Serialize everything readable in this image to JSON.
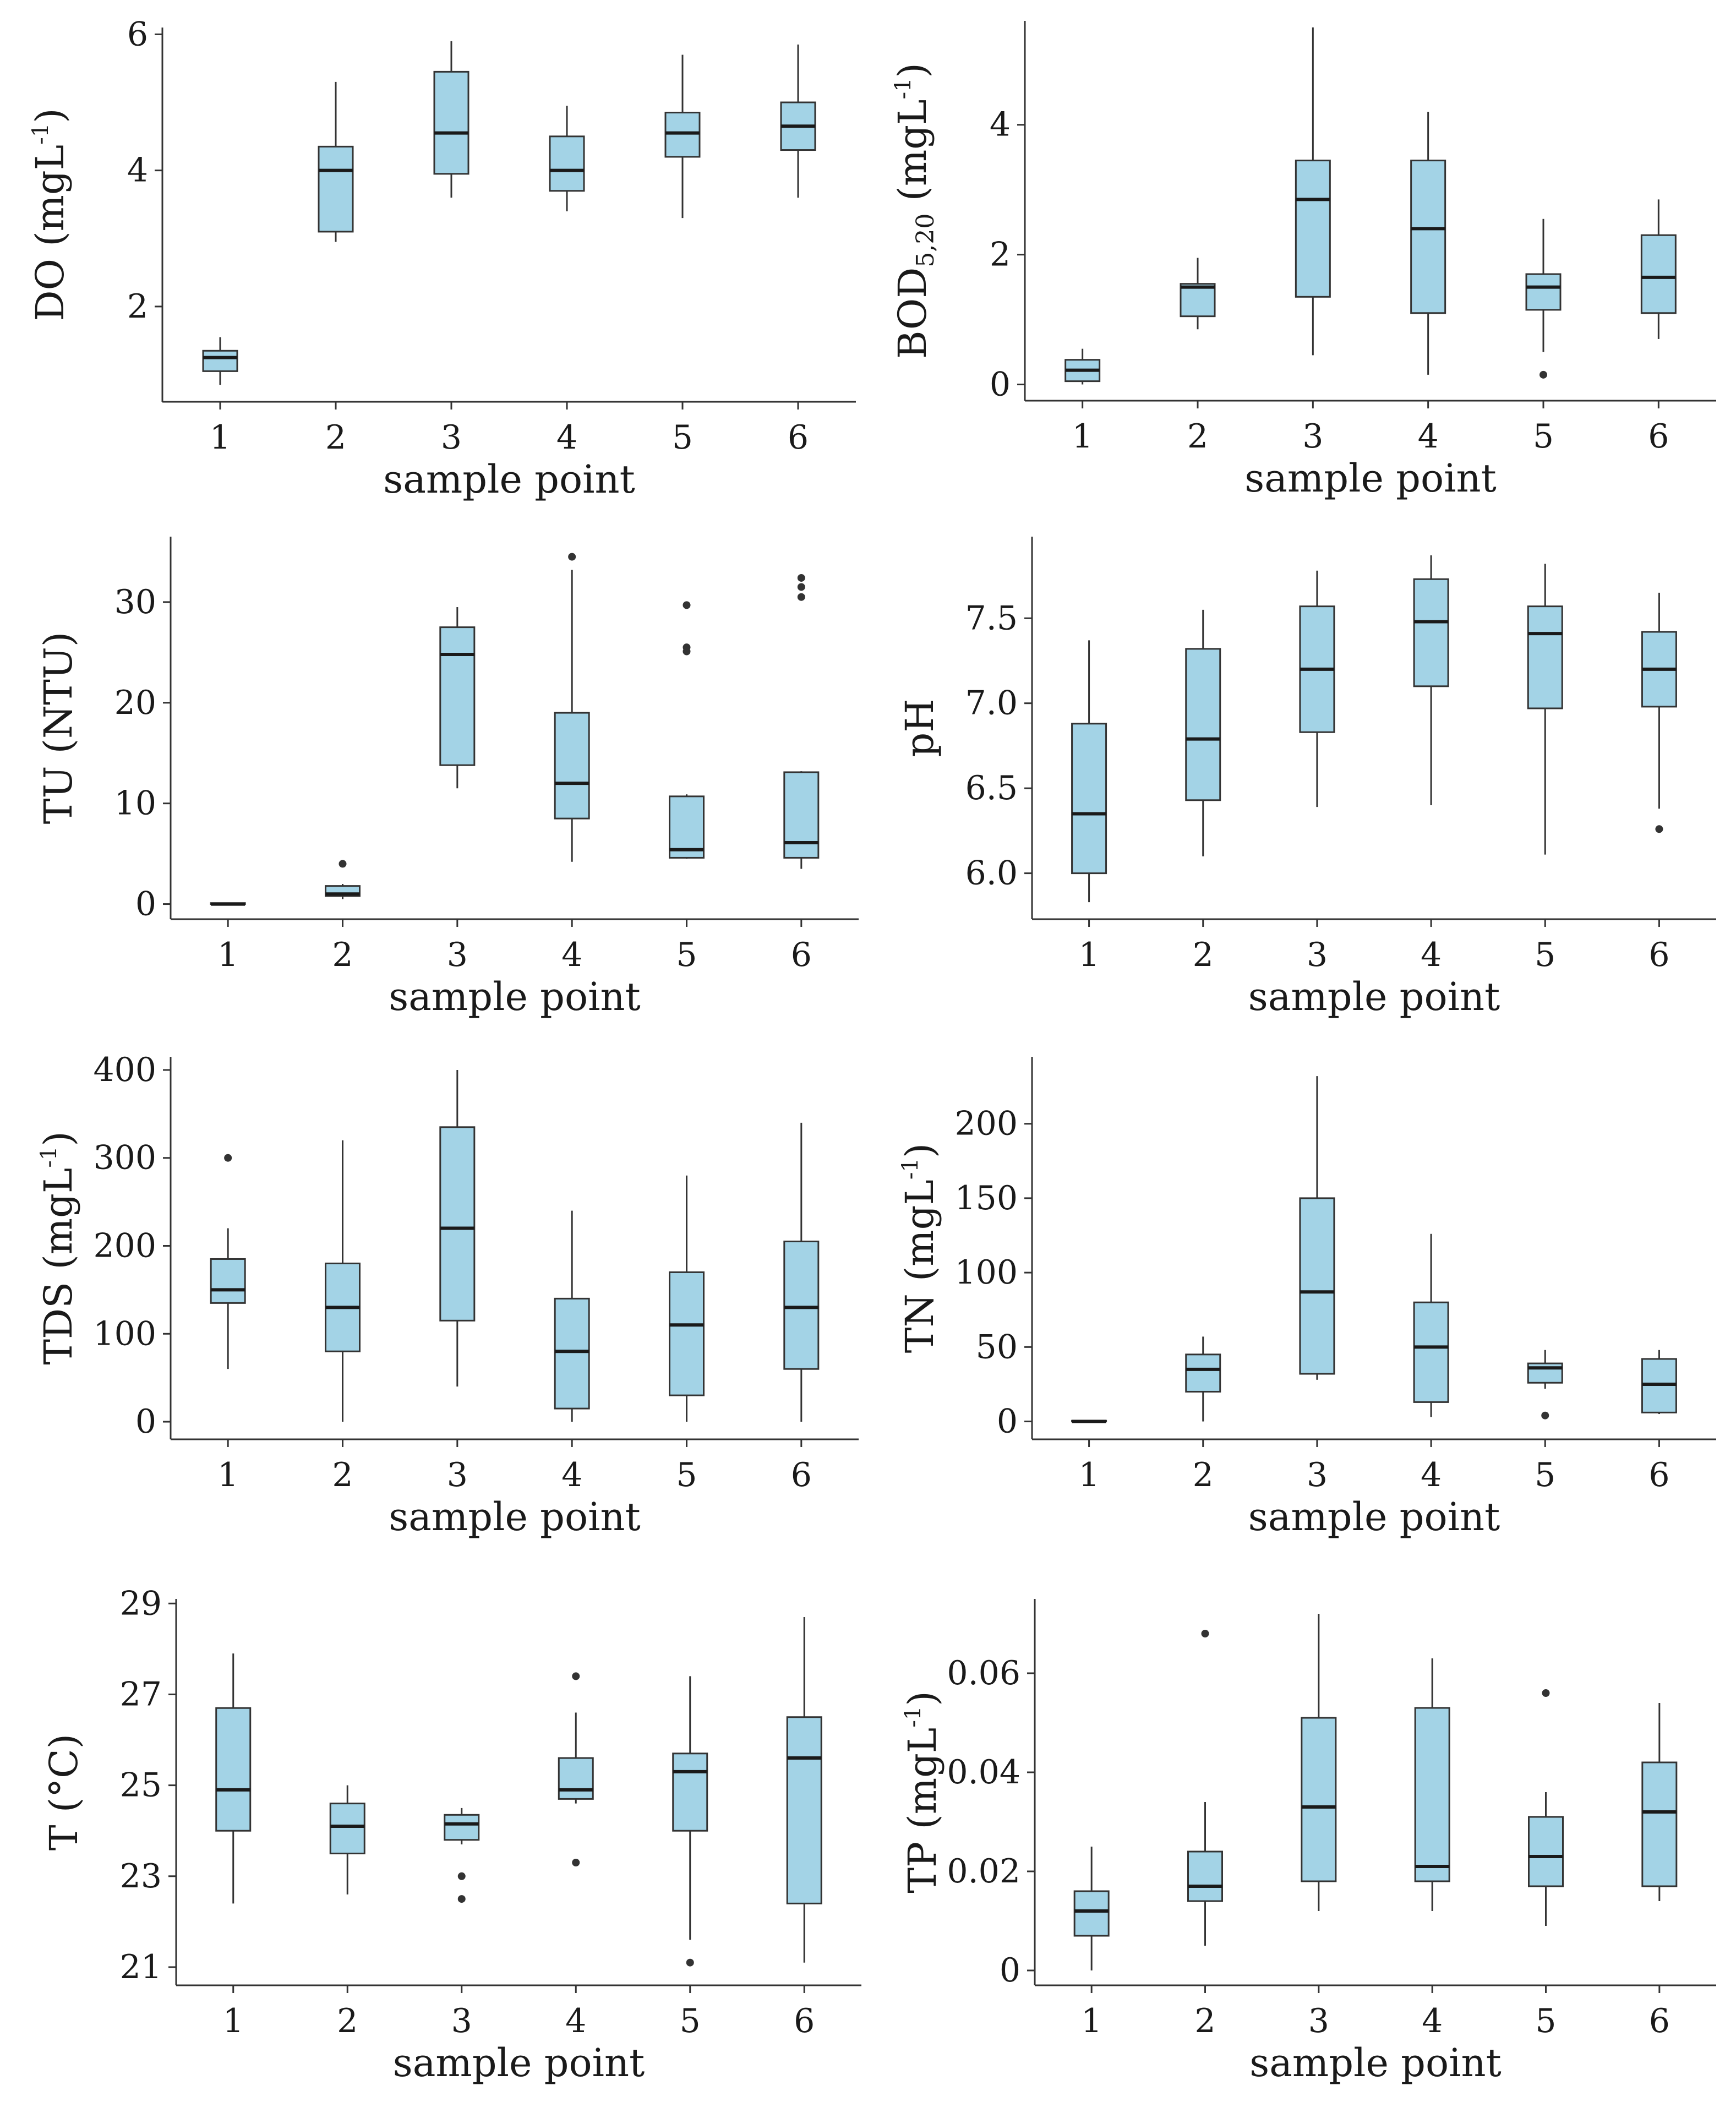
{
  "colors": {
    "box_fill": "#a3d3e6",
    "box_stroke": "#333333"
  },
  "chart_data": [
    {
      "type": "boxplot",
      "id": "do",
      "ylabel_main": "DO (mgL",
      "ylabel_sup": "-1",
      "ylabel_tail": ")",
      "xlabel": "sample point",
      "categories": [
        "1",
        "2",
        "3",
        "4",
        "5",
        "6"
      ],
      "ylim": [
        0.6,
        6.1
      ],
      "yticks": [
        {
          "v": 2,
          "label": "2"
        },
        {
          "v": 4,
          "label": "4"
        },
        {
          "v": 6,
          "label": "6"
        }
      ],
      "boxes": [
        {
          "min": 0.85,
          "q1": 1.05,
          "median": 1.25,
          "q3": 1.35,
          "max": 1.55,
          "outliers": []
        },
        {
          "min": 2.95,
          "q1": 3.1,
          "median": 4.0,
          "q3": 4.35,
          "max": 5.3,
          "outliers": []
        },
        {
          "min": 3.6,
          "q1": 3.95,
          "median": 4.55,
          "q3": 5.45,
          "max": 5.9,
          "outliers": []
        },
        {
          "min": 3.4,
          "q1": 3.7,
          "median": 4.0,
          "q3": 4.5,
          "max": 4.95,
          "outliers": []
        },
        {
          "min": 3.3,
          "q1": 4.2,
          "median": 4.55,
          "q3": 4.85,
          "max": 5.7,
          "outliers": []
        },
        {
          "min": 3.6,
          "q1": 4.3,
          "median": 4.65,
          "q3": 5.0,
          "max": 5.85,
          "outliers": []
        }
      ]
    },
    {
      "type": "boxplot",
      "id": "bod",
      "ylabel_main": "BOD",
      "ylabel_sub": "5,20",
      "ylabel_tail": " (mgL",
      "ylabel_sup": "-1",
      "ylabel_end": ")",
      "xlabel": "sample point",
      "categories": [
        "1",
        "2",
        "3",
        "4",
        "5",
        "6"
      ],
      "ylim": [
        -0.25,
        5.6
      ],
      "yticks": [
        {
          "v": 0,
          "label": "0"
        },
        {
          "v": 2,
          "label": "2"
        },
        {
          "v": 4,
          "label": "4"
        }
      ],
      "boxes": [
        {
          "min": 0.0,
          "q1": 0.05,
          "median": 0.22,
          "q3": 0.38,
          "max": 0.55,
          "outliers": []
        },
        {
          "min": 0.85,
          "q1": 1.05,
          "median": 1.5,
          "q3": 1.55,
          "max": 1.95,
          "outliers": []
        },
        {
          "min": 0.45,
          "q1": 1.35,
          "median": 2.85,
          "q3": 3.45,
          "max": 5.5,
          "outliers": []
        },
        {
          "min": 0.15,
          "q1": 1.1,
          "median": 2.4,
          "q3": 3.45,
          "max": 4.2,
          "outliers": []
        },
        {
          "min": 0.5,
          "q1": 1.15,
          "median": 1.5,
          "q3": 1.7,
          "max": 2.55,
          "outliers": [
            0.15
          ]
        },
        {
          "min": 0.7,
          "q1": 1.1,
          "median": 1.65,
          "q3": 2.3,
          "max": 2.85,
          "outliers": []
        }
      ]
    },
    {
      "type": "boxplot",
      "id": "tu",
      "ylabel_main": "TU (NTU)",
      "xlabel": "sample point",
      "categories": [
        "1",
        "2",
        "3",
        "4",
        "5",
        "6"
      ],
      "ylim": [
        -1.5,
        36.5
      ],
      "yticks": [
        {
          "v": 0,
          "label": "0"
        },
        {
          "v": 10,
          "label": "10"
        },
        {
          "v": 20,
          "label": "20"
        },
        {
          "v": 30,
          "label": "30"
        }
      ],
      "boxes": [
        {
          "min": 0.0,
          "q1": 0.0,
          "median": 0.0,
          "q3": 0.1,
          "max": 0.1,
          "outliers": []
        },
        {
          "min": 0.5,
          "q1": 0.8,
          "median": 1.0,
          "q3": 1.8,
          "max": 2.0,
          "outliers": [
            4.0
          ]
        },
        {
          "min": 11.5,
          "q1": 13.8,
          "median": 24.8,
          "q3": 27.5,
          "max": 29.5,
          "outliers": []
        },
        {
          "min": 4.2,
          "q1": 8.5,
          "median": 12.0,
          "q3": 19.0,
          "max": 33.2,
          "outliers": [
            34.5
          ]
        },
        {
          "min": 4.5,
          "q1": 4.6,
          "median": 5.4,
          "q3": 10.7,
          "max": 10.9,
          "outliers": [
            25.1,
            25.5,
            29.7
          ]
        },
        {
          "min": 3.5,
          "q1": 4.6,
          "median": 6.1,
          "q3": 13.1,
          "max": 13.2,
          "outliers": [
            30.5,
            31.5,
            32.4
          ]
        }
      ]
    },
    {
      "type": "boxplot",
      "id": "ph",
      "ylabel_main": "pH",
      "xlabel": "sample point",
      "categories": [
        "1",
        "2",
        "3",
        "4",
        "5",
        "6"
      ],
      "ylim": [
        5.73,
        7.98
      ],
      "yticks": [
        {
          "v": 6.0,
          "label": "6.0"
        },
        {
          "v": 6.5,
          "label": "6.5"
        },
        {
          "v": 7.0,
          "label": "7.0"
        },
        {
          "v": 7.5,
          "label": "7.5"
        }
      ],
      "boxes": [
        {
          "min": 5.83,
          "q1": 6.0,
          "median": 6.35,
          "q3": 6.88,
          "max": 7.37,
          "outliers": []
        },
        {
          "min": 6.1,
          "q1": 6.43,
          "median": 6.79,
          "q3": 7.32,
          "max": 7.55,
          "outliers": []
        },
        {
          "min": 6.39,
          "q1": 6.83,
          "median": 7.2,
          "q3": 7.57,
          "max": 7.78,
          "outliers": []
        },
        {
          "min": 6.4,
          "q1": 7.1,
          "median": 7.48,
          "q3": 7.73,
          "max": 7.87,
          "outliers": []
        },
        {
          "min": 6.11,
          "q1": 6.97,
          "median": 7.41,
          "q3": 7.57,
          "max": 7.82,
          "outliers": []
        },
        {
          "min": 6.38,
          "q1": 6.98,
          "median": 7.2,
          "q3": 7.42,
          "max": 7.65,
          "outliers": [
            6.26
          ]
        }
      ]
    },
    {
      "type": "boxplot",
      "id": "tds",
      "ylabel_main": "TDS (mgL",
      "ylabel_sup": "-1",
      "ylabel_tail": ")",
      "xlabel": "sample point",
      "categories": [
        "1",
        "2",
        "3",
        "4",
        "5",
        "6"
      ],
      "ylim": [
        -20,
        415
      ],
      "yticks": [
        {
          "v": 0,
          "label": "0"
        },
        {
          "v": 100,
          "label": "100"
        },
        {
          "v": 200,
          "label": "200"
        },
        {
          "v": 300,
          "label": "300"
        },
        {
          "v": 400,
          "label": "400"
        }
      ],
      "boxes": [
        {
          "min": 60,
          "q1": 135,
          "median": 150,
          "q3": 185,
          "max": 220,
          "outliers": [
            300
          ]
        },
        {
          "min": 0,
          "q1": 80,
          "median": 130,
          "q3": 180,
          "max": 320,
          "outliers": []
        },
        {
          "min": 40,
          "q1": 115,
          "median": 220,
          "q3": 335,
          "max": 400,
          "outliers": []
        },
        {
          "min": 0,
          "q1": 15,
          "median": 80,
          "q3": 140,
          "max": 240,
          "outliers": []
        },
        {
          "min": 0,
          "q1": 30,
          "median": 110,
          "q3": 170,
          "max": 280,
          "outliers": []
        },
        {
          "min": 0,
          "q1": 60,
          "median": 130,
          "q3": 205,
          "max": 340,
          "outliers": []
        }
      ]
    },
    {
      "type": "boxplot",
      "id": "tn",
      "ylabel_main": "TN (mgL",
      "ylabel_sup": "-1",
      "ylabel_tail": ")",
      "xlabel": "sample point",
      "categories": [
        "1",
        "2",
        "3",
        "4",
        "5",
        "6"
      ],
      "ylim": [
        -12,
        245
      ],
      "yticks": [
        {
          "v": 0,
          "label": "0"
        },
        {
          "v": 50,
          "label": "50"
        },
        {
          "v": 100,
          "label": "100"
        },
        {
          "v": 150,
          "label": "150"
        },
        {
          "v": 200,
          "label": "200"
        }
      ],
      "boxes": [
        {
          "min": 0,
          "q1": 0,
          "median": 0,
          "q3": 0.5,
          "max": 0.5,
          "outliers": []
        },
        {
          "min": 0,
          "q1": 20,
          "median": 35,
          "q3": 45,
          "max": 57,
          "outliers": []
        },
        {
          "min": 28,
          "q1": 32,
          "median": 87,
          "q3": 150,
          "max": 232,
          "outliers": []
        },
        {
          "min": 3,
          "q1": 13,
          "median": 50,
          "q3": 80,
          "max": 126,
          "outliers": []
        },
        {
          "min": 22,
          "q1": 26,
          "median": 36,
          "q3": 39,
          "max": 48,
          "outliers": [
            4
          ]
        },
        {
          "min": 5,
          "q1": 6,
          "median": 25,
          "q3": 42,
          "max": 48,
          "outliers": []
        }
      ]
    },
    {
      "type": "boxplot",
      "id": "temp",
      "ylabel_main": "T (°C)",
      "xlabel": "sample point",
      "categories": [
        "1",
        "2",
        "3",
        "4",
        "5",
        "6"
      ],
      "ylim": [
        20.6,
        29.1
      ],
      "yticks": [
        {
          "v": 21,
          "label": "21"
        },
        {
          "v": 23,
          "label": "23"
        },
        {
          "v": 25,
          "label": "25"
        },
        {
          "v": 27,
          "label": "27"
        },
        {
          "v": 29,
          "label": "29"
        }
      ],
      "boxes": [
        {
          "min": 22.4,
          "q1": 24.0,
          "median": 24.9,
          "q3": 26.7,
          "max": 27.9,
          "outliers": []
        },
        {
          "min": 22.6,
          "q1": 23.5,
          "median": 24.1,
          "q3": 24.6,
          "max": 25.0,
          "outliers": []
        },
        {
          "min": 23.7,
          "q1": 23.8,
          "median": 24.15,
          "q3": 24.35,
          "max": 24.5,
          "outliers": [
            23.0,
            22.5
          ]
        },
        {
          "min": 24.6,
          "q1": 24.7,
          "median": 24.9,
          "q3": 25.6,
          "max": 26.6,
          "outliers": [
            27.4,
            23.3
          ]
        },
        {
          "min": 21.6,
          "q1": 24.0,
          "median": 25.3,
          "q3": 25.7,
          "max": 27.4,
          "outliers": [
            21.1
          ]
        },
        {
          "min": 21.1,
          "q1": 22.4,
          "median": 25.6,
          "q3": 26.5,
          "max": 28.7,
          "outliers": []
        }
      ]
    },
    {
      "type": "boxplot",
      "id": "tp",
      "ylabel_main": "TP (mgL",
      "ylabel_sup": "-1",
      "ylabel_tail": ")",
      "xlabel": "sample point",
      "categories": [
        "1",
        "2",
        "3",
        "4",
        "5",
        "6"
      ],
      "ylim": [
        -0.003,
        0.075
      ],
      "yticks": [
        {
          "v": 0,
          "label": "0"
        },
        {
          "v": 0.02,
          "label": "0.02"
        },
        {
          "v": 0.04,
          "label": "0.04"
        },
        {
          "v": 0.06,
          "label": "0.06"
        }
      ],
      "boxes": [
        {
          "min": 0.0,
          "q1": 0.007,
          "median": 0.012,
          "q3": 0.016,
          "max": 0.025,
          "outliers": []
        },
        {
          "min": 0.005,
          "q1": 0.014,
          "median": 0.017,
          "q3": 0.024,
          "max": 0.034,
          "outliers": [
            0.068
          ]
        },
        {
          "min": 0.012,
          "q1": 0.018,
          "median": 0.033,
          "q3": 0.051,
          "max": 0.072,
          "outliers": []
        },
        {
          "min": 0.012,
          "q1": 0.018,
          "median": 0.021,
          "q3": 0.053,
          "max": 0.063,
          "outliers": []
        },
        {
          "min": 0.009,
          "q1": 0.017,
          "median": 0.023,
          "q3": 0.031,
          "max": 0.036,
          "outliers": [
            0.056
          ]
        },
        {
          "min": 0.014,
          "q1": 0.017,
          "median": 0.032,
          "q3": 0.042,
          "max": 0.054,
          "outliers": []
        }
      ]
    }
  ]
}
